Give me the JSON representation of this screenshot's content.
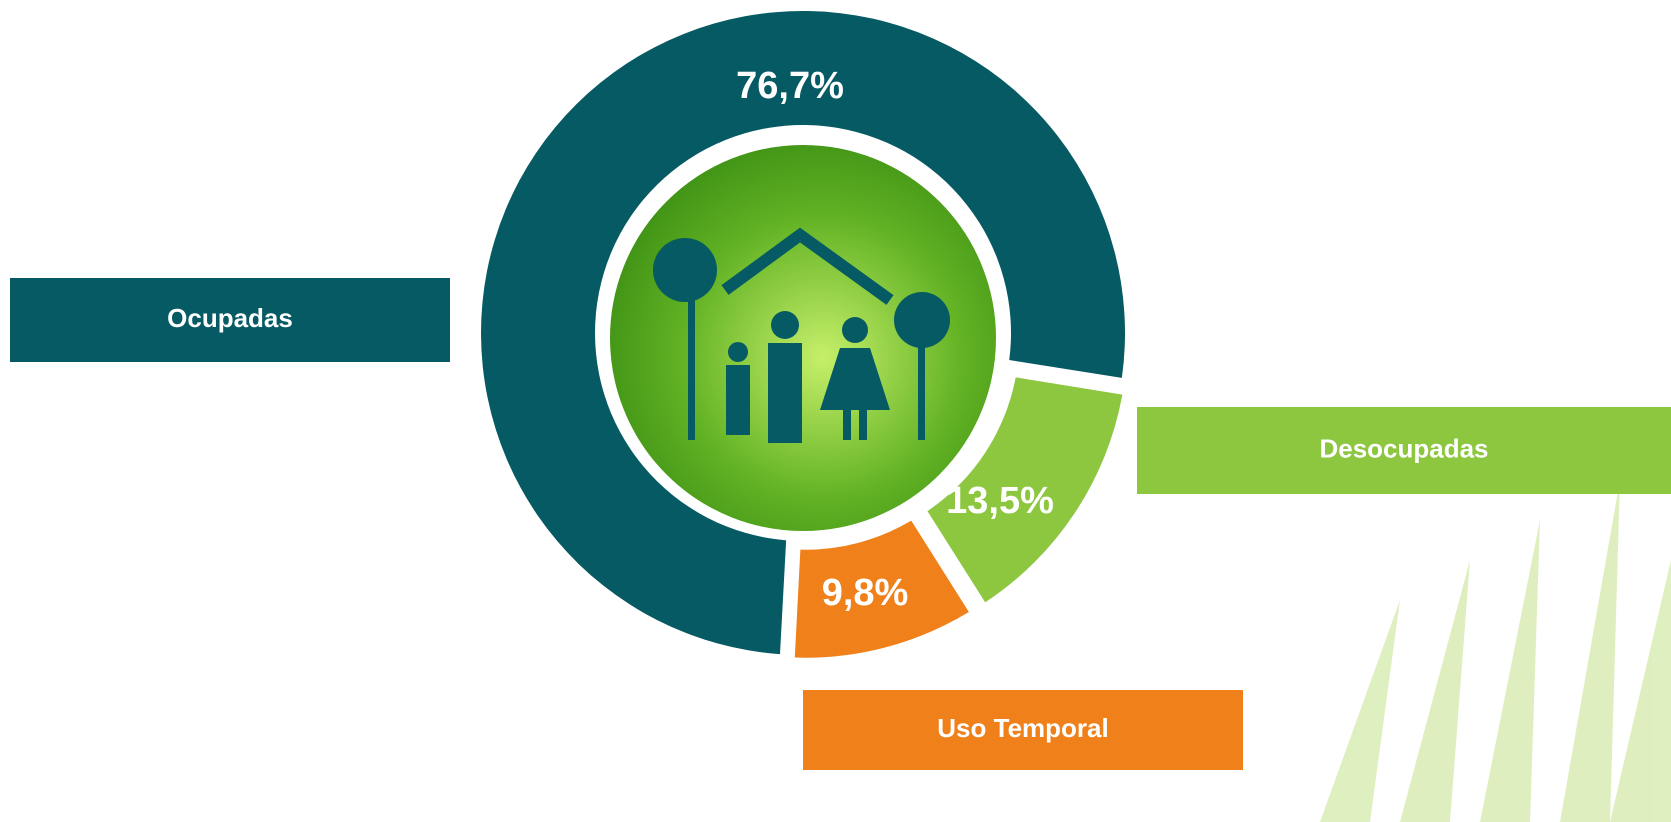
{
  "chart_data": {
    "type": "donut",
    "categories": [
      "Ocupadas",
      "Desocupadas",
      "Uso Temporal"
    ],
    "values": [
      76.7,
      13.5,
      9.8
    ],
    "value_labels": [
      "76,7%",
      "13,5%",
      "9,8%"
    ],
    "colors": [
      "#065a63",
      "#8dc63f",
      "#f0801a"
    ]
  }
}
